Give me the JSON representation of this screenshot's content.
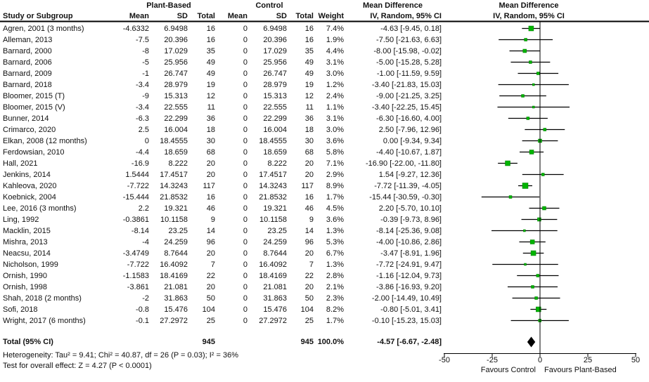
{
  "header": {
    "study_col": "Study or Subgroup",
    "group1": "Plant-Based",
    "group2": "Control",
    "mean": "Mean",
    "sd": "SD",
    "total": "Total",
    "weight": "Weight",
    "effect_title": "Mean Difference",
    "effect_sub": "IV, Random, 95% CI"
  },
  "chart_data": {
    "type": "forest",
    "effect_measure": "Mean Difference",
    "model": "IV, Random, 95% CI",
    "axis": {
      "ticks": [
        -50,
        -25,
        0,
        25,
        50
      ],
      "range": [
        -50,
        50
      ],
      "left_label": "Favours Control",
      "right_label": "Favours Plant-Based"
    },
    "marker_color": "#00b400",
    "studies": [
      {
        "label": "Agren, 2001 (3 months)",
        "pb_mean": "-4.6332",
        "pb_sd": "6.9498",
        "pb_total": "16",
        "c_mean": "0",
        "c_sd": "6.9498",
        "c_total": "16",
        "weight": "7.4%",
        "weight_value": 7.4,
        "ci_text": "-4.63 [-9.45, 0.18]",
        "est": [
          -4.63,
          -9.45,
          0.18
        ]
      },
      {
        "label": "Alleman, 2013",
        "pb_mean": "-7.5",
        "pb_sd": "20.396",
        "pb_total": "16",
        "c_mean": "0",
        "c_sd": "20.396",
        "c_total": "16",
        "weight": "1.9%",
        "weight_value": 1.9,
        "ci_text": "-7.50 [-21.63, 6.63]",
        "est": [
          -7.5,
          -21.63,
          6.63
        ]
      },
      {
        "label": "Barnard, 2000",
        "pb_mean": "-8",
        "pb_sd": "17.029",
        "pb_total": "35",
        "c_mean": "0",
        "c_sd": "17.029",
        "c_total": "35",
        "weight": "4.4%",
        "weight_value": 4.4,
        "ci_text": "-8.00 [-15.98, -0.02]",
        "est": [
          -8.0,
          -15.98,
          -0.02
        ]
      },
      {
        "label": "Barnard, 2006",
        "pb_mean": "-5",
        "pb_sd": "25.956",
        "pb_total": "49",
        "c_mean": "0",
        "c_sd": "25.956",
        "c_total": "49",
        "weight": "3.1%",
        "weight_value": 3.1,
        "ci_text": "-5.00 [-15.28, 5.28]",
        "est": [
          -5.0,
          -15.28,
          5.28
        ]
      },
      {
        "label": "Barnard, 2009",
        "pb_mean": "-1",
        "pb_sd": "26.747",
        "pb_total": "49",
        "c_mean": "0",
        "c_sd": "26.747",
        "c_total": "49",
        "weight": "3.0%",
        "weight_value": 3.0,
        "ci_text": "-1.00 [-11.59, 9.59]",
        "est": [
          -1.0,
          -11.59,
          9.59
        ]
      },
      {
        "label": "Barnard, 2018",
        "pb_mean": "-3.4",
        "pb_sd": "28.979",
        "pb_total": "19",
        "c_mean": "0",
        "c_sd": "28.979",
        "c_total": "19",
        "weight": "1.2%",
        "weight_value": 1.2,
        "ci_text": "-3.40 [-21.83, 15.03]",
        "est": [
          -3.4,
          -21.83,
          15.03
        ]
      },
      {
        "label": "Bloomer, 2015 (T)",
        "pb_mean": "-9",
        "pb_sd": "15.313",
        "pb_total": "12",
        "c_mean": "0",
        "c_sd": "15.313",
        "c_total": "12",
        "weight": "2.4%",
        "weight_value": 2.4,
        "ci_text": "-9.00 [-21.25, 3.25]",
        "est": [
          -9.0,
          -21.25,
          3.25
        ]
      },
      {
        "label": "Bloomer, 2015 (V)",
        "pb_mean": "-3.4",
        "pb_sd": "22.555",
        "pb_total": "11",
        "c_mean": "0",
        "c_sd": "22.555",
        "c_total": "11",
        "weight": "1.1%",
        "weight_value": 1.1,
        "ci_text": "-3.40 [-22.25, 15.45]",
        "est": [
          -3.4,
          -22.25,
          15.45
        ]
      },
      {
        "label": "Bunner, 2014",
        "pb_mean": "-6.3",
        "pb_sd": "22.299",
        "pb_total": "36",
        "c_mean": "0",
        "c_sd": "22.299",
        "c_total": "36",
        "weight": "3.1%",
        "weight_value": 3.1,
        "ci_text": "-6.30 [-16.60, 4.00]",
        "est": [
          -6.3,
          -16.6,
          4.0
        ]
      },
      {
        "label": "Crimarco, 2020",
        "pb_mean": "2.5",
        "pb_sd": "16.004",
        "pb_total": "18",
        "c_mean": "0",
        "c_sd": "16.004",
        "c_total": "18",
        "weight": "3.0%",
        "weight_value": 3.0,
        "ci_text": "2.50 [-7.96, 12.96]",
        "est": [
          2.5,
          -7.96,
          12.96
        ]
      },
      {
        "label": "Elkan, 2008 (12 months)",
        "pb_mean": "0",
        "pb_sd": "18.4555",
        "pb_total": "30",
        "c_mean": "0",
        "c_sd": "18.4555",
        "c_total": "30",
        "weight": "3.6%",
        "weight_value": 3.6,
        "ci_text": "0.00 [-9.34, 9.34]",
        "est": [
          0.0,
          -9.34,
          9.34
        ]
      },
      {
        "label": "Ferdowsian, 2010",
        "pb_mean": "-4.4",
        "pb_sd": "18.659",
        "pb_total": "68",
        "c_mean": "0",
        "c_sd": "18.659",
        "c_total": "68",
        "weight": "5.8%",
        "weight_value": 5.8,
        "ci_text": "-4.40 [-10.67, 1.87]",
        "est": [
          -4.4,
          -10.67,
          1.87
        ]
      },
      {
        "label": "Hall, 2021",
        "pb_mean": "-16.9",
        "pb_sd": "8.222",
        "pb_total": "20",
        "c_mean": "0",
        "c_sd": "8.222",
        "c_total": "20",
        "weight": "7.1%",
        "weight_value": 7.1,
        "ci_text": "-16.90 [-22.00, -11.80]",
        "est": [
          -16.9,
          -22.0,
          -11.8
        ]
      },
      {
        "label": "Jenkins, 2014",
        "pb_mean": "1.5444",
        "pb_sd": "17.4517",
        "pb_total": "20",
        "c_mean": "0",
        "c_sd": "17.4517",
        "c_total": "20",
        "weight": "2.9%",
        "weight_value": 2.9,
        "ci_text": "1.54 [-9.27, 12.36]",
        "est": [
          1.54,
          -9.27,
          12.36
        ]
      },
      {
        "label": "Kahleova, 2020",
        "pb_mean": "-7.722",
        "pb_sd": "14.3243",
        "pb_total": "117",
        "c_mean": "0",
        "c_sd": "14.3243",
        "c_total": "117",
        "weight": "8.9%",
        "weight_value": 8.9,
        "ci_text": "-7.72 [-11.39, -4.05]",
        "est": [
          -7.72,
          -11.39,
          -4.05
        ]
      },
      {
        "label": "Koebnick, 2004",
        "pb_mean": "-15.444",
        "pb_sd": "21.8532",
        "pb_total": "16",
        "c_mean": "0",
        "c_sd": "21.8532",
        "c_total": "16",
        "weight": "1.7%",
        "weight_value": 1.7,
        "ci_text": "-15.44 [-30.59, -0.30]",
        "est": [
          -15.44,
          -30.59,
          -0.3
        ]
      },
      {
        "label": "Lee, 2016 (3 months)",
        "pb_mean": "2.2",
        "pb_sd": "19.321",
        "pb_total": "46",
        "c_mean": "0",
        "c_sd": "19.321",
        "c_total": "46",
        "weight": "4.5%",
        "weight_value": 4.5,
        "ci_text": "2.20 [-5.70, 10.10]",
        "est": [
          2.2,
          -5.7,
          10.1
        ]
      },
      {
        "label": "Ling, 1992",
        "pb_mean": "-0.3861",
        "pb_sd": "10.1158",
        "pb_total": "9",
        "c_mean": "0",
        "c_sd": "10.1158",
        "c_total": "9",
        "weight": "3.6%",
        "weight_value": 3.6,
        "ci_text": "-0.39 [-9.73, 8.96]",
        "est": [
          -0.39,
          -9.73,
          8.96
        ]
      },
      {
        "label": "Macklin, 2015",
        "pb_mean": "-8.14",
        "pb_sd": "23.25",
        "pb_total": "14",
        "c_mean": "0",
        "c_sd": "23.25",
        "c_total": "14",
        "weight": "1.3%",
        "weight_value": 1.3,
        "ci_text": "-8.14 [-25.36, 9.08]",
        "est": [
          -8.14,
          -25.36,
          9.08
        ]
      },
      {
        "label": "Mishra, 2013",
        "pb_mean": "-4",
        "pb_sd": "24.259",
        "pb_total": "96",
        "c_mean": "0",
        "c_sd": "24.259",
        "c_total": "96",
        "weight": "5.3%",
        "weight_value": 5.3,
        "ci_text": "-4.00 [-10.86, 2.86]",
        "est": [
          -4.0,
          -10.86,
          2.86
        ]
      },
      {
        "label": "Neacsu, 2014",
        "pb_mean": "-3.4749",
        "pb_sd": "8.7644",
        "pb_total": "20",
        "c_mean": "0",
        "c_sd": "8.7644",
        "c_total": "20",
        "weight": "6.7%",
        "weight_value": 6.7,
        "ci_text": "-3.47 [-8.91, 1.96]",
        "est": [
          -3.47,
          -8.91,
          1.96
        ]
      },
      {
        "label": "Nicholson, 1999",
        "pb_mean": "-7.722",
        "pb_sd": "16.4092",
        "pb_total": "7",
        "c_mean": "0",
        "c_sd": "16.4092",
        "c_total": "7",
        "weight": "1.3%",
        "weight_value": 1.3,
        "ci_text": "-7.72 [-24.91, 9.47]",
        "est": [
          -7.72,
          -24.91,
          9.47
        ]
      },
      {
        "label": "Ornish, 1990",
        "pb_mean": "-1.1583",
        "pb_sd": "18.4169",
        "pb_total": "22",
        "c_mean": "0",
        "c_sd": "18.4169",
        "c_total": "22",
        "weight": "2.8%",
        "weight_value": 2.8,
        "ci_text": "-1.16 [-12.04, 9.73]",
        "est": [
          -1.16,
          -12.04,
          9.73
        ]
      },
      {
        "label": "Ornish, 1998",
        "pb_mean": "-3.861",
        "pb_sd": "21.081",
        "pb_total": "20",
        "c_mean": "0",
        "c_sd": "21.081",
        "c_total": "20",
        "weight": "2.1%",
        "weight_value": 2.1,
        "ci_text": "-3.86 [-16.93, 9.20]",
        "est": [
          -3.86,
          -16.93,
          9.2
        ]
      },
      {
        "label": "Shah, 2018 (2 months)",
        "pb_mean": "-2",
        "pb_sd": "31.863",
        "pb_total": "50",
        "c_mean": "0",
        "c_sd": "31.863",
        "c_total": "50",
        "weight": "2.3%",
        "weight_value": 2.3,
        "ci_text": "-2.00 [-14.49, 10.49]",
        "est": [
          -2.0,
          -14.49,
          10.49
        ]
      },
      {
        "label": "Sofi, 2018",
        "pb_mean": "-0.8",
        "pb_sd": "15.476",
        "pb_total": "104",
        "c_mean": "0",
        "c_sd": "15.476",
        "c_total": "104",
        "weight": "8.2%",
        "weight_value": 8.2,
        "ci_text": "-0.80 [-5.01, 3.41]",
        "est": [
          -0.8,
          -5.01,
          3.41
        ]
      },
      {
        "label": "Wright, 2017 (6 months)",
        "pb_mean": "-0.1",
        "pb_sd": "27.2972",
        "pb_total": "25",
        "c_mean": "0",
        "c_sd": "27.2972",
        "c_total": "25",
        "weight": "1.7%",
        "weight_value": 1.7,
        "ci_text": "-0.10 [-15.23, 15.03]",
        "est": [
          -0.1,
          -15.23,
          15.03
        ]
      }
    ],
    "total": {
      "label": "Total (95% CI)",
      "pb_total": "945",
      "c_total": "945",
      "weight": "100.0%",
      "ci_text": "-4.57 [-6.67, -2.48]",
      "est": [
        -4.57,
        -6.67,
        -2.48
      ]
    },
    "footnotes": {
      "heterogeneity": "Heterogeneity: Tau² = 9.41; Chi² = 40.87, df = 26 (P = 0.03); I² = 36%",
      "overall_effect": "Test for overall effect: Z = 4.27 (P < 0.0001)"
    }
  }
}
